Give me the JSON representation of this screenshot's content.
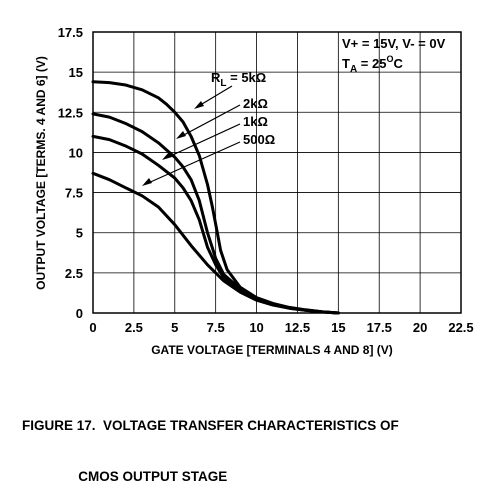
{
  "chart_data": {
    "type": "line",
    "title": "",
    "xlabel": "GATE VOLTAGE [TERMINALS 4 AND 8] (V)",
    "ylabel": "OUTPUT VOLTAGE [TERMS. 4 AND 6] (V)",
    "xlim": [
      0,
      22.5
    ],
    "ylim": [
      0,
      17.5
    ],
    "x_ticks": [
      "0",
      "2.5",
      "5",
      "7.5",
      "10",
      "12.5",
      "15",
      "17.5",
      "20",
      "22.5"
    ],
    "y_ticks": [
      "0",
      "2.5",
      "5",
      "7.5",
      "10",
      "12.5",
      "15",
      "17.5"
    ],
    "grid": true,
    "conditions": {
      "line1": "V+ = 15V, V- = 0V",
      "line2_prefix": "T",
      "line2_sub": "A",
      "line2_mid": " = 25",
      "line2_sup": "O",
      "line2_suffix": "C"
    },
    "series": [
      {
        "name": "RL = 5kΩ",
        "label_prefix": "R",
        "label_sub": "L",
        "label_text": " = 5kΩ",
        "x": [
          0,
          1,
          2,
          3,
          4,
          4.5,
          5,
          5.5,
          6,
          6.5,
          7,
          7.3,
          7.6,
          7.8,
          8.2,
          9,
          10,
          11,
          12,
          13,
          14,
          15
        ],
        "y": [
          14.4,
          14.35,
          14.2,
          13.9,
          13.4,
          13.0,
          12.5,
          11.9,
          11.0,
          9.8,
          8.0,
          6.6,
          5.0,
          3.9,
          2.7,
          1.6,
          0.95,
          0.6,
          0.35,
          0.2,
          0.08,
          0.0
        ]
      },
      {
        "name": "2kΩ",
        "x": [
          0,
          1,
          2,
          3,
          4,
          5,
          5.5,
          6,
          6.5,
          7,
          7.5,
          8,
          9,
          10,
          11,
          12,
          13,
          14,
          15
        ],
        "y": [
          12.4,
          12.2,
          11.8,
          11.3,
          10.6,
          9.7,
          9.1,
          8.3,
          7.0,
          5.0,
          3.4,
          2.4,
          1.5,
          0.9,
          0.55,
          0.32,
          0.18,
          0.07,
          0.0
        ]
      },
      {
        "name": "1kΩ",
        "x": [
          0,
          1,
          2,
          3,
          4,
          5,
          5.5,
          6,
          6.5,
          7,
          7.5,
          8,
          9,
          10,
          11,
          12,
          13,
          14,
          15
        ],
        "y": [
          11.0,
          10.8,
          10.4,
          9.9,
          9.2,
          8.4,
          7.8,
          7.0,
          5.8,
          4.1,
          3.0,
          2.2,
          1.35,
          0.85,
          0.52,
          0.3,
          0.17,
          0.07,
          0.0
        ]
      },
      {
        "name": "500Ω",
        "x": [
          0,
          1,
          2,
          3,
          4,
          5,
          6,
          7,
          8,
          9,
          10,
          11,
          12,
          13,
          14,
          15
        ],
        "y": [
          8.7,
          8.3,
          7.8,
          7.3,
          6.6,
          5.5,
          4.2,
          3.0,
          2.0,
          1.3,
          0.8,
          0.5,
          0.3,
          0.17,
          0.07,
          0.0
        ]
      }
    ]
  },
  "caption": {
    "line1": "FIGURE 17.  VOLTAGE TRANSFER CHARACTERISTICS OF",
    "line2": "               CMOS OUTPUT STAGE"
  }
}
